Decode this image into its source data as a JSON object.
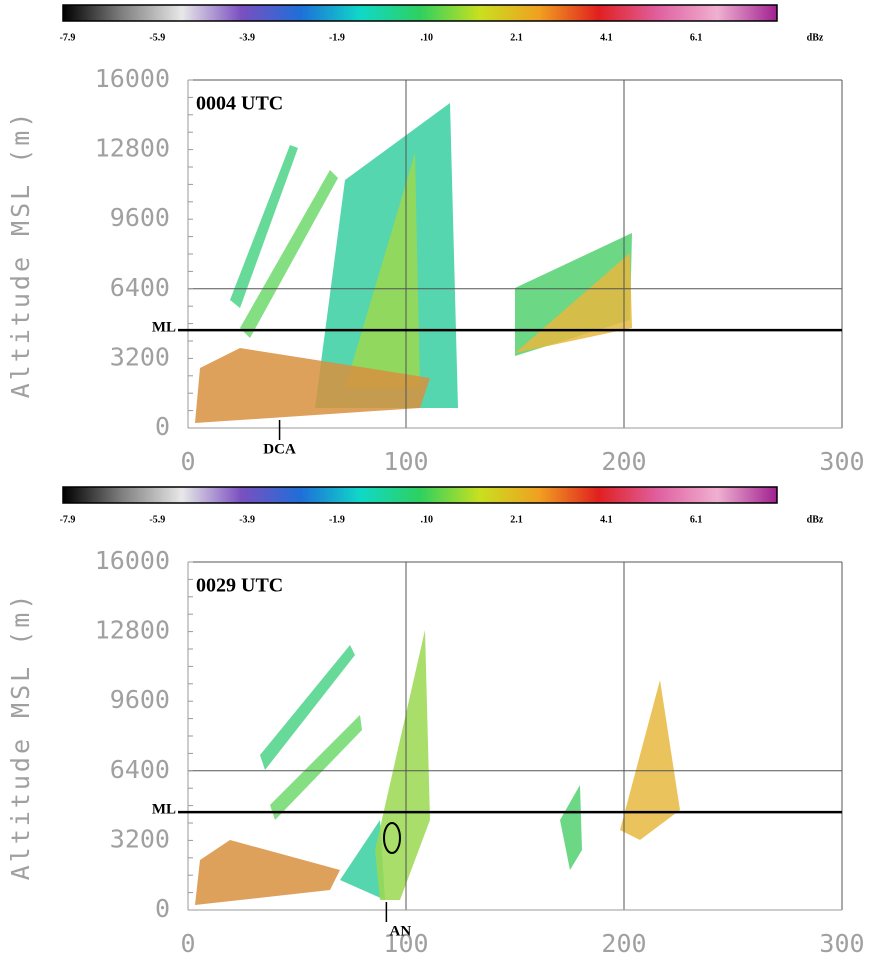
{
  "chart_data": [
    {
      "type": "section",
      "title": "0004 UTC",
      "y_label": "Altitude MSL (m)",
      "xlim": [
        0,
        300
      ],
      "xticks": [
        0,
        100,
        200,
        300
      ],
      "ylim": [
        0,
        16000
      ],
      "yticks": [
        0,
        3200,
        6400,
        9600,
        12800,
        16000
      ],
      "grid_x": [
        100,
        200,
        300
      ],
      "grid_y": [
        6400,
        16000
      ],
      "ml_label": "ML",
      "ml_altitude": 4500,
      "site_label": "DCA",
      "site_x": 42,
      "colorbar": {
        "lim": [
          -8,
          7.9
        ],
        "unit": "dBz",
        "ticks": [
          -7.9,
          -5.9,
          -3.9,
          -1.9,
          {
            "value": 0.1,
            "label": ".10"
          },
          2.1,
          4.1,
          6.1
        ],
        "colors": [
          "#000000",
          "#808080",
          "#e8e8e8",
          "#7a4fc0",
          "#1e6fd8",
          "#10d8c8",
          "#2ed060",
          "#c8e020",
          "#f0a020",
          "#e02020",
          "#e060a0",
          "#f0b0d0",
          "#a02090"
        ]
      }
    },
    {
      "type": "section",
      "title": "0029 UTC",
      "y_label": "Altitude MSL (m)",
      "xlim": [
        0,
        300
      ],
      "xticks": [
        0,
        100,
        200,
        300
      ],
      "ylim": [
        0,
        16000
      ],
      "yticks": [
        0,
        3200,
        6400,
        9600,
        12800,
        16000
      ],
      "grid_x": [
        100,
        200,
        300
      ],
      "grid_y": [
        6400,
        16000
      ],
      "ml_label": "ML",
      "ml_altitude": 4500,
      "site_label": "AN",
      "site_x": 91,
      "colorbar": {
        "lim": [
          -8,
          7.9
        ],
        "unit": "dBz",
        "ticks": [
          -7.9,
          -5.9,
          -3.9,
          -1.9,
          {
            "value": 0.1,
            "label": ".10"
          },
          2.1,
          4.1,
          6.1
        ],
        "colors": [
          "#000000",
          "#808080",
          "#e8e8e8",
          "#7a4fc0",
          "#1e6fd8",
          "#10d8c8",
          "#2ed060",
          "#c8e020",
          "#f0a020",
          "#e02020",
          "#e060a0",
          "#f0b0d0",
          "#a02090"
        ]
      }
    }
  ]
}
